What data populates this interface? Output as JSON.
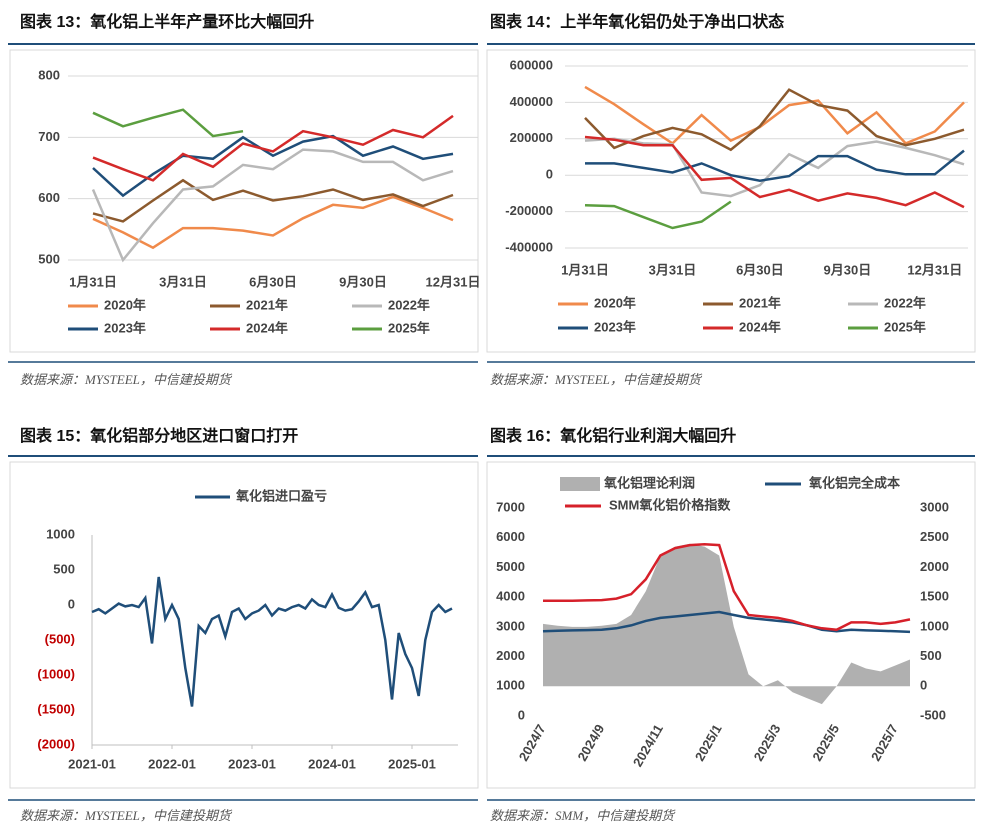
{
  "chart_data": [
    {
      "type": "line",
      "title": "图表 13：氧化铝上半年产量环比大幅回升",
      "source": "数据来源：MYSTEEL，中信建投期货",
      "categories": [
        "1月31日",
        null,
        null,
        "3月31日",
        null,
        null,
        "6月30日",
        null,
        null,
        "9月30日",
        null,
        null,
        "12月31日"
      ],
      "ylim": [
        500,
        800
      ],
      "yticks": [
        500,
        600,
        700,
        800
      ],
      "grid": true,
      "series": [
        {
          "name": "2020年",
          "color": "#f08a4b",
          "values": [
            567,
            545,
            520,
            552,
            552,
            548,
            540,
            568,
            590,
            585,
            603,
            585,
            565
          ]
        },
        {
          "name": "2021年",
          "color": "#8c5a2e",
          "values": [
            576,
            563,
            597,
            630,
            598,
            613,
            597,
            604,
            615,
            598,
            607,
            588,
            606
          ]
        },
        {
          "name": "2022年",
          "color": "#b8b8b8",
          "values": [
            615,
            500,
            560,
            615,
            620,
            655,
            648,
            680,
            677,
            660,
            660,
            630,
            645
          ]
        },
        {
          "name": "2023年",
          "color": "#1f4e79",
          "values": [
            650,
            605,
            640,
            670,
            665,
            700,
            670,
            693,
            702,
            670,
            685,
            665,
            673
          ]
        },
        {
          "name": "2024年",
          "color": "#d42a2a",
          "values": [
            667,
            648,
            630,
            673,
            652,
            690,
            677,
            710,
            700,
            688,
            712,
            700,
            735
          ]
        },
        {
          "name": "2025年",
          "color": "#5b9e3f",
          "values": [
            740,
            718,
            732,
            745,
            702,
            710,
            null,
            null,
            null,
            null,
            null,
            null,
            null
          ]
        }
      ]
    },
    {
      "type": "line",
      "title": "图表 14：上半年氧化铝仍处于净出口状态",
      "source": "数据来源：MYSTEEL，中信建投期货",
      "categories": [
        "1月31日",
        null,
        null,
        "3月31日",
        null,
        null,
        "6月30日",
        null,
        null,
        "9月30日",
        null,
        null,
        "12月31日",
        null
      ],
      "ylim": [
        -400000,
        600000
      ],
      "yticks": [
        -400000,
        -200000,
        0,
        200000,
        400000,
        600000
      ],
      "grid": true,
      "series": [
        {
          "name": "2020年",
          "color": "#f08a4b",
          "values": [
            485000,
            390000,
            280000,
            175000,
            330000,
            190000,
            265000,
            385000,
            410000,
            230000,
            345000,
            175000,
            240000,
            400000
          ]
        },
        {
          "name": "2021年",
          "color": "#8c5a2e",
          "values": [
            315000,
            150000,
            215000,
            260000,
            225000,
            140000,
            270000,
            470000,
            385000,
            355000,
            215000,
            165000,
            200000,
            250000
          ]
        },
        {
          "name": "2022年",
          "color": "#b8b8b8",
          "values": [
            190000,
            200000,
            175000,
            170000,
            -95000,
            -115000,
            -55000,
            115000,
            40000,
            160000,
            185000,
            150000,
            110000,
            60000
          ]
        },
        {
          "name": "2023年",
          "color": "#1f4e79",
          "values": [
            65000,
            65000,
            40000,
            15000,
            65000,
            0,
            -30000,
            -5000,
            105000,
            105000,
            30000,
            5000,
            5000,
            135000
          ]
        },
        {
          "name": "2024年",
          "color": "#d42a2a",
          "values": [
            210000,
            195000,
            165000,
            165000,
            -25000,
            -15000,
            -120000,
            -80000,
            -140000,
            -100000,
            -125000,
            -165000,
            -95000,
            -175000
          ]
        },
        {
          "name": "2025年",
          "color": "#5b9e3f",
          "values": [
            -165000,
            -170000,
            -230000,
            -290000,
            -255000,
            -145000,
            null,
            null,
            null,
            null,
            null,
            null,
            null,
            null
          ]
        }
      ]
    },
    {
      "type": "timeline",
      "title": "图表 15：氧化铝部分地区进口窗口打开",
      "source": "数据来源：MYSTEEL，中信建投期货",
      "x": [
        "2021-01",
        "2021-02",
        "2021-03",
        "2021-04",
        "2021-05",
        "2021-06",
        "2021-07",
        "2021-08",
        "2021-09",
        "2021-10",
        "2021-11",
        "2021-12",
        "2022-01",
        "2022-02",
        "2022-03",
        "2022-04",
        "2022-05",
        "2022-06",
        "2022-07",
        "2022-08",
        "2022-09",
        "2022-10",
        "2022-11",
        "2022-12",
        "2023-01",
        "2023-02",
        "2023-03",
        "2023-04",
        "2023-05",
        "2023-06",
        "2023-07",
        "2023-08",
        "2023-09",
        "2023-10",
        "2023-11",
        "2023-12",
        "2024-01",
        "2024-02",
        "2024-03",
        "2024-04",
        "2024-05",
        "2024-06",
        "2024-07",
        "2024-08",
        "2024-09",
        "2024-10",
        "2024-11",
        "2024-12",
        "2025-01",
        "2025-02",
        "2025-03",
        "2025-04",
        "2025-05",
        "2025-06",
        "2025-07"
      ],
      "xticks": [
        "2021-01",
        "2022-01",
        "2023-01",
        "2024-01",
        "2025-01"
      ],
      "ylim": [
        -2000,
        1000
      ],
      "yticks": [
        {
          "value": -2000,
          "label": "(2000)"
        },
        {
          "value": -1500,
          "label": "(1500)"
        },
        {
          "value": -1000,
          "label": "(1000)"
        },
        {
          "value": -500,
          "label": "(500)"
        },
        0,
        500,
        1000
      ],
      "negative_tick_color": "#c00000",
      "series": [
        {
          "name": "氧化铝进口盈亏",
          "color": "#1f4e79",
          "values": [
            -100,
            -60,
            -120,
            -50,
            20,
            -20,
            0,
            -30,
            100,
            -550,
            400,
            -200,
            0,
            -200,
            -900,
            -1450,
            -300,
            -400,
            -200,
            -150,
            -450,
            -100,
            -50,
            -200,
            -120,
            -80,
            0,
            -150,
            -50,
            -80,
            -30,
            0,
            -50,
            80,
            0,
            -30,
            150,
            -40,
            -80,
            -60,
            50,
            180,
            -30,
            0,
            -500,
            -1350,
            -400,
            -700,
            -900,
            -1300,
            -500,
            -100,
            0,
            -100,
            -50
          ]
        }
      ]
    },
    {
      "type": "combo",
      "title": "图表 16：氧化铝行业利润大幅回升",
      "source": "数据来源：SMM，中信建投期货",
      "categories": [
        "2024/7",
        null,
        null,
        null,
        "2024/9",
        null,
        null,
        null,
        "2024/11",
        null,
        null,
        null,
        "2025/1",
        null,
        null,
        null,
        "2025/3",
        null,
        null,
        null,
        "2025/5",
        null,
        null,
        null,
        "2025/7",
        null
      ],
      "ylim": [
        0,
        7000
      ],
      "yticks": [
        0,
        1000,
        2000,
        3000,
        4000,
        5000,
        6000,
        7000
      ],
      "y2lim": [
        -500,
        3000
      ],
      "y2ticks": [
        -500,
        0,
        500,
        1000,
        1500,
        2000,
        2500,
        3000
      ],
      "series": [
        {
          "name": "氧化铝理论利润",
          "type": "area",
          "axis": "y2",
          "color": "#b0b0b0",
          "values": [
            1050,
            1020,
            1000,
            1000,
            1020,
            1050,
            1200,
            1600,
            2200,
            2350,
            2400,
            2350,
            2200,
            1000,
            200,
            0,
            100,
            -100,
            -200,
            -300,
            0,
            400,
            300,
            250,
            350,
            450
          ]
        },
        {
          "name": "氧化铝完全成本",
          "type": "line",
          "color": "#1f4e79",
          "values": [
            2850,
            2870,
            2880,
            2890,
            2900,
            2950,
            3050,
            3200,
            3300,
            3350,
            3400,
            3450,
            3500,
            3400,
            3300,
            3250,
            3200,
            3150,
            3050,
            2900,
            2850,
            2900,
            2880,
            2870,
            2850,
            2830
          ]
        },
        {
          "name": "SMM氧化铝价格指数",
          "type": "line",
          "color": "#d6202a",
          "values": [
            3880,
            3880,
            3880,
            3890,
            3900,
            3950,
            4100,
            4600,
            5400,
            5650,
            5750,
            5780,
            5750,
            4200,
            3400,
            3350,
            3300,
            3200,
            3050,
            2950,
            2900,
            3150,
            3150,
            3100,
            3150,
            3250
          ]
        }
      ]
    }
  ]
}
